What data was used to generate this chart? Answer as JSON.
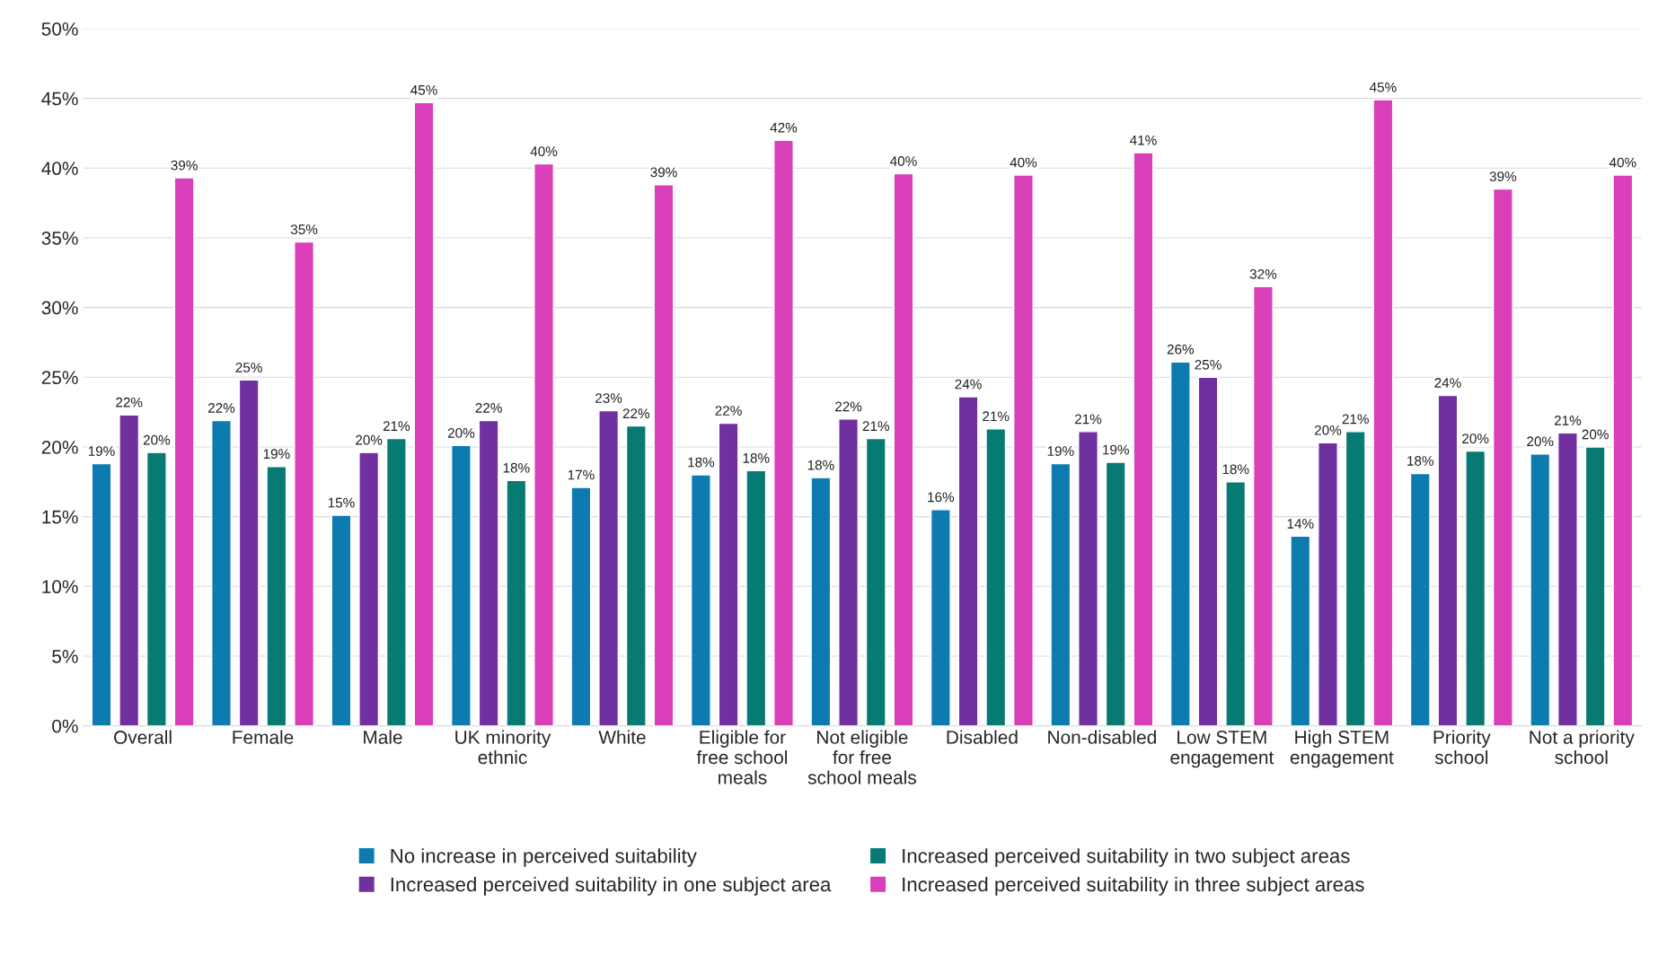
{
  "chart_data": {
    "type": "bar",
    "categories": [
      "Overall",
      "Female",
      "Male",
      "UK minority\nethnic",
      "White",
      "Eligible for\nfree school\nmeals",
      "Not eligible\nfor free\nschool meals",
      "Disabled",
      "Non-disabled",
      "Low STEM\nengagement",
      "High STEM\nengagement",
      "Priority\nschool",
      "Not a priority\nschool"
    ],
    "series": [
      {
        "name": "No increase in perceived suitability",
        "color": "#0e7bb0",
        "values": [
          18.8,
          21.9,
          15.1,
          20.1,
          17.1,
          18.0,
          17.8,
          15.5,
          18.8,
          26.1,
          13.6,
          18.1,
          19.5
        ],
        "value_labels": [
          "19%",
          "22%",
          "15%",
          "20%",
          "17%",
          "18%",
          "18%",
          "16%",
          "19%",
          "26%",
          "14%",
          "18%",
          "20%"
        ]
      },
      {
        "name": "Increased perceived suitability in one subject area",
        "color": "#7030a0",
        "values": [
          22.3,
          24.8,
          19.6,
          21.9,
          22.6,
          21.7,
          22.0,
          23.6,
          21.1,
          25.0,
          20.3,
          23.7,
          21.0
        ],
        "value_labels": [
          "22%",
          "25%",
          "20%",
          "22%",
          "23%",
          "22%",
          "22%",
          "24%",
          "21%",
          "25%",
          "20%",
          "24%",
          "21%"
        ]
      },
      {
        "name": "Increased perceived suitability in two subject areas",
        "color": "#077a73",
        "values": [
          19.6,
          18.6,
          20.6,
          17.6,
          21.5,
          18.3,
          20.6,
          21.3,
          18.9,
          17.5,
          21.1,
          19.7,
          20.0
        ],
        "value_labels": [
          "20%",
          "19%",
          "21%",
          "18%",
          "22%",
          "18%",
          "21%",
          "21%",
          "19%",
          "18%",
          "21%",
          "20%",
          "20%"
        ]
      },
      {
        "name": "Increased perceived suitability in three subject areas",
        "color": "#d93fb8",
        "values": [
          39.3,
          34.7,
          44.7,
          40.3,
          38.8,
          42.0,
          39.6,
          39.5,
          41.1,
          31.5,
          44.9,
          38.5,
          39.5
        ],
        "value_labels": [
          "39%",
          "35%",
          "45%",
          "40%",
          "39%",
          "42%",
          "40%",
          "40%",
          "41%",
          "32%",
          "45%",
          "39%",
          "40%"
        ]
      }
    ],
    "ylim": [
      0,
      50
    ],
    "yticks": [
      {
        "value": 0,
        "label": "0%"
      },
      {
        "value": 5,
        "label": "5%"
      },
      {
        "value": 10,
        "label": "10%"
      },
      {
        "value": 15,
        "label": "15%"
      },
      {
        "value": 20,
        "label": "20%"
      },
      {
        "value": 25,
        "label": "25%"
      },
      {
        "value": 30,
        "label": "30%"
      },
      {
        "value": 35,
        "label": "35%"
      },
      {
        "value": 40,
        "label": "40%"
      },
      {
        "value": 45,
        "label": "45%"
      },
      {
        "value": 50,
        "label": "50%"
      }
    ],
    "grid": "y",
    "legend": "bottom"
  }
}
